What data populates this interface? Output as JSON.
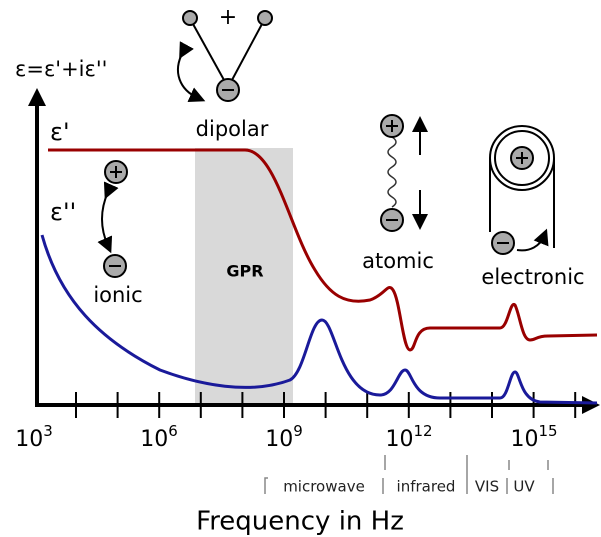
{
  "axes": {
    "y_label": "ε=ε'+iε''",
    "x_label": "Frequency in Hz",
    "x_tick_labels": [
      {
        "base": "10",
        "exponent": "3"
      },
      {
        "base": "10",
        "exponent": "6"
      },
      {
        "base": "10",
        "exponent": "9"
      },
      {
        "base": "10",
        "exponent": "12"
      },
      {
        "base": "10",
        "exponent": "15"
      }
    ]
  },
  "curves": {
    "real": "ε'",
    "imaginary": "ε''"
  },
  "region": "GPR",
  "mechanisms": {
    "dipolar": "dipolar",
    "dipolar_sign": "+",
    "ionic": "ionic",
    "atomic": "atomic",
    "electronic": "electronic"
  },
  "bands": [
    "microwave",
    "infrared",
    "VIS",
    "UV"
  ]
}
